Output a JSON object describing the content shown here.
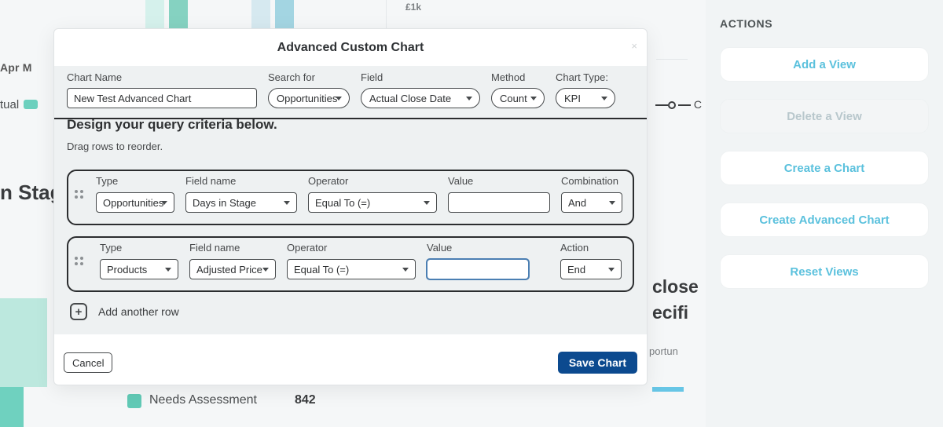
{
  "background": {
    "ylabel": "£1k",
    "months": "Apr   M",
    "tual_label": "tual",
    "stage_heading": "n Stag",
    "marker_label": "C",
    "close_frag": "close",
    "ecifi_frag": "ecifi",
    "portun_frag": "portun",
    "legend_label": "Needs Assessment",
    "legend_value": "842"
  },
  "actions": {
    "title": "ACTIONS",
    "add_view": "Add a View",
    "delete_view": "Delete a View",
    "create_chart": "Create a Chart",
    "create_adv_chart": "Create Advanced Chart",
    "reset_views": "Reset Views"
  },
  "modal": {
    "title": "Advanced Custom Chart",
    "chart_name_label": "Chart Name",
    "chart_name_value": "New Test Advanced Chart",
    "search_for_label": "Search for",
    "search_for_value": "Opportunities",
    "field_label_top": "Field",
    "field_value_top": "Actual Close Date",
    "method_label": "Method",
    "method_value": "Count",
    "chart_type_label": "Chart Type:",
    "chart_type_value": "KPI",
    "query_heading": "Design your query criteria below.",
    "query_sub": "Drag rows to reorder.",
    "col": {
      "type": "Type",
      "field_name": "Field name",
      "operator": "Operator",
      "value": "Value",
      "combination": "Combination",
      "action": "Action"
    },
    "rows": [
      {
        "type": "Opportunities",
        "field_name": "Days in Stage",
        "operator": "Equal To (=)",
        "value": "",
        "combination": "And"
      },
      {
        "type": "Products",
        "field_name": "Adjusted Price",
        "operator": "Equal To (=)",
        "value": "",
        "action": "End"
      }
    ],
    "add_row_label": "Add another row",
    "cancel_label": "Cancel",
    "save_label": "Save Chart"
  },
  "style": {
    "accent": "#5bc1dd",
    "primary_dark": "#0c4a8f",
    "panel_bg": "#eef1f2",
    "border_dark": "#474a4c",
    "teal": "#6cd0be"
  }
}
